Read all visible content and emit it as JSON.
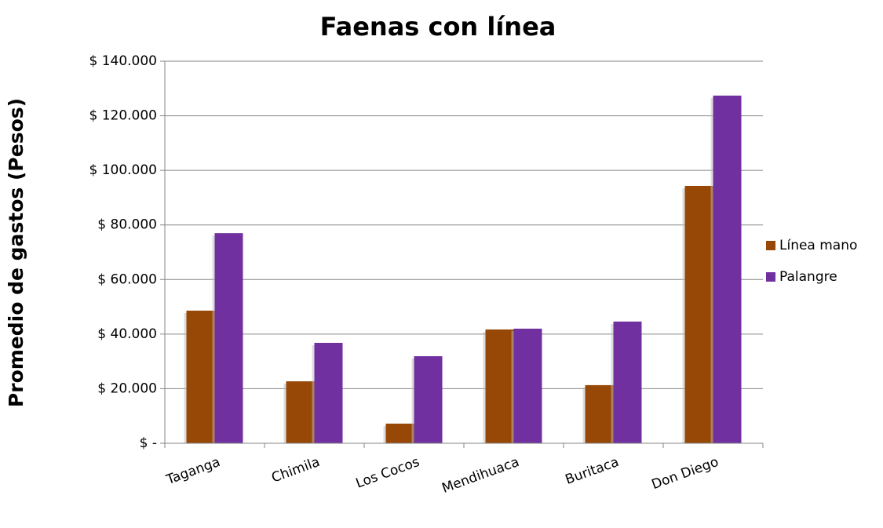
{
  "chart_data": {
    "type": "bar",
    "title": "Faenas con línea",
    "y_label": "Promedio de gastos (Pesos)",
    "categories": [
      "Taganga",
      "Chimila",
      "Los Cocos",
      "Mendihuaca",
      "Buritaca",
      "Don Diego"
    ],
    "series": [
      {
        "name": "Línea mano",
        "color": "#974806",
        "values": [
          48600,
          22700,
          7200,
          41700,
          21300,
          94300
        ]
      },
      {
        "name": "Palangre",
        "color": "#7030a0",
        "values": [
          77000,
          36800,
          31900,
          42000,
          44600,
          127400
        ]
      }
    ],
    "ylim": [
      0,
      140000
    ],
    "yticks": [
      {
        "value": 0,
        "label": "$ -"
      },
      {
        "value": 20000,
        "label": "$ 20.000"
      },
      {
        "value": 40000,
        "label": "$ 40.000"
      },
      {
        "value": 60000,
        "label": "$ 60.000"
      },
      {
        "value": 80000,
        "label": "$ 80.000"
      },
      {
        "value": 100000,
        "label": "$ 100.000"
      },
      {
        "value": 120000,
        "label": "$ 120.000"
      },
      {
        "value": 140000,
        "label": "$ 140.000"
      }
    ],
    "grid": true,
    "legend": "right"
  }
}
